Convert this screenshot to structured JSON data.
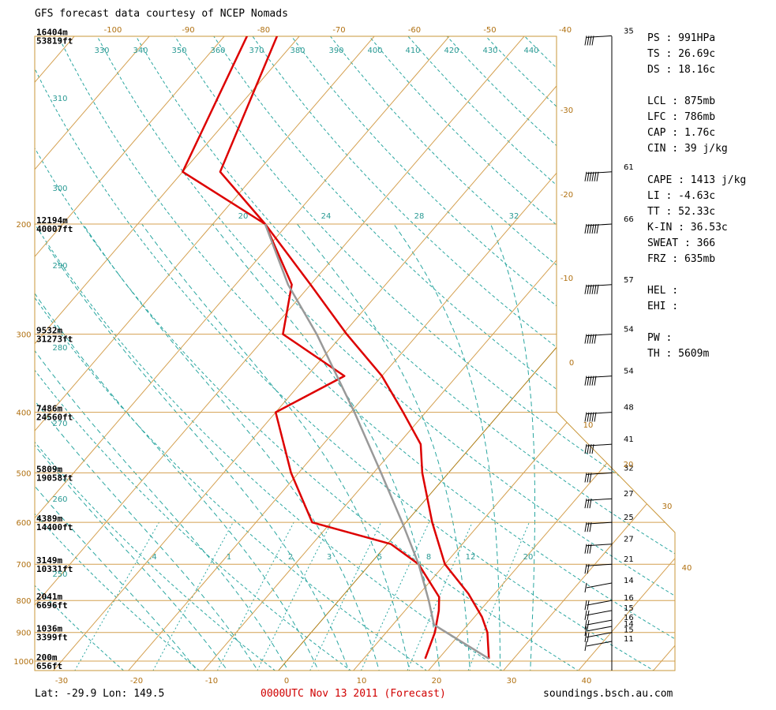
{
  "header": {
    "title": "GFS forecast data courtesy of NCEP Nomads"
  },
  "footer": {
    "location": "Lat: -29.9  Lon: 149.5",
    "run": "0000UTC Nov 13 2011 (Forecast)",
    "source": "soundings.bsch.au.com"
  },
  "indices": [
    {
      "label": "PS",
      "value": "991HPa"
    },
    {
      "label": "TS",
      "value": "26.69c"
    },
    {
      "label": "DS",
      "value": "18.16c"
    },
    {
      "label": "",
      "value": ""
    },
    {
      "label": "LCL",
      "value": "875mb"
    },
    {
      "label": "LFC",
      "value": "786mb"
    },
    {
      "label": "CAP",
      "value": "1.76c"
    },
    {
      "label": "CIN",
      "value": "39 j/kg"
    },
    {
      "label": "",
      "value": ""
    },
    {
      "label": "CAPE",
      "value": "1413 j/kg"
    },
    {
      "label": "LI",
      "value": "-4.63c"
    },
    {
      "label": "TT",
      "value": "52.33c"
    },
    {
      "label": "K-IN",
      "value": "36.53c"
    },
    {
      "label": "SWEAT",
      "value": "366"
    },
    {
      "label": "FRZ",
      "value": "635mb"
    },
    {
      "label": "",
      "value": ""
    },
    {
      "label": "HEL",
      "value": ""
    },
    {
      "label": "EHI",
      "value": ""
    },
    {
      "label": "",
      "value": ""
    },
    {
      "label": "PW",
      "value": ""
    },
    {
      "label": "TH",
      "value": "5609m"
    }
  ],
  "chart_data": {
    "type": "line",
    "chart_kind": "skew-t log-p",
    "x_bottom_ticks": [
      "-30",
      "-20",
      "-10",
      "0",
      "10",
      "20",
      "30",
      "40"
    ],
    "x_top_ticks": [
      "-100",
      "-90",
      "-80",
      "-70",
      "-60",
      "-50",
      "-40"
    ],
    "right_temp_labels": [
      "-30",
      "-20",
      "-10",
      "0",
      "10",
      "20",
      "30",
      "40"
    ],
    "pressure_ticks": [
      "200",
      "300",
      "400",
      "500",
      "600",
      "700",
      "800",
      "900",
      "1000"
    ],
    "height_labels": [
      {
        "p": 100,
        "m": "16404m",
        "ft": "53819ft"
      },
      {
        "p": 200,
        "m": "12194m",
        "ft": "40007ft"
      },
      {
        "p": 300,
        "m": "9532m",
        "ft": "31273ft"
      },
      {
        "p": 400,
        "m": "7486m",
        "ft": "24560ft"
      },
      {
        "p": 500,
        "m": "5809m",
        "ft": "19058ft"
      },
      {
        "p": 600,
        "m": "4389m",
        "ft": "14400ft"
      },
      {
        "p": 700,
        "m": "3149m",
        "ft": "10331ft"
      },
      {
        "p": 800,
        "m": "2041m",
        "ft": "6696ft"
      },
      {
        "p": 900,
        "m": "1036m",
        "ft": "3399ft"
      },
      {
        "p": 1000,
        "m": "200m",
        "ft": "656ft"
      }
    ],
    "theta_labels": [
      "330",
      "340",
      "350",
      "360",
      "370",
      "380",
      "390",
      "400",
      "410",
      "420",
      "430",
      "440",
      "310",
      "300",
      "290",
      "280",
      "270",
      "260",
      "250"
    ],
    "thetae_labels": [
      "20",
      "24",
      "28",
      "32"
    ],
    "mixing_ratio_labels": [
      ".4",
      "1",
      "2",
      "3",
      "5",
      "8",
      "12",
      "20"
    ],
    "series": [
      {
        "name": "temperature",
        "color": "#dd0000",
        "points": [
          {
            "p": 100,
            "t": -73.0
          },
          {
            "p": 165,
            "t": -65.0
          },
          {
            "p": 200,
            "t": -53.0
          },
          {
            "p": 250,
            "t": -40.0
          },
          {
            "p": 300,
            "t": -29.5
          },
          {
            "p": 350,
            "t": -20.0
          },
          {
            "p": 400,
            "t": -13.0
          },
          {
            "p": 450,
            "t": -7.0
          },
          {
            "p": 500,
            "t": -3.5
          },
          {
            "p": 600,
            "t": 3.5
          },
          {
            "p": 700,
            "t": 10.0
          },
          {
            "p": 780,
            "t": 16.5
          },
          {
            "p": 850,
            "t": 21.0
          },
          {
            "p": 900,
            "t": 23.5
          },
          {
            "p": 991,
            "t": 26.7
          }
        ]
      },
      {
        "name": "dewpoint",
        "color": "#dd0000",
        "points": [
          {
            "p": 100,
            "t": -77.0
          },
          {
            "p": 165,
            "t": -70.0
          },
          {
            "p": 200,
            "t": -53.0
          },
          {
            "p": 250,
            "t": -42.5
          },
          {
            "p": 300,
            "t": -38.0
          },
          {
            "p": 350,
            "t": -25.0
          },
          {
            "p": 400,
            "t": -30.0
          },
          {
            "p": 500,
            "t": -21.0
          },
          {
            "p": 600,
            "t": -12.5
          },
          {
            "p": 650,
            "t": 0.5
          },
          {
            "p": 700,
            "t": 6.5
          },
          {
            "p": 790,
            "t": 13.0
          },
          {
            "p": 830,
            "t": 14.5
          },
          {
            "p": 900,
            "t": 16.5
          },
          {
            "p": 991,
            "t": 18.2
          }
        ]
      },
      {
        "name": "parcel",
        "color": "#999999",
        "points": [
          {
            "p": 991,
            "t": 26.7
          },
          {
            "p": 875,
            "t": 15.5
          },
          {
            "p": 800,
            "t": 12.0
          },
          {
            "p": 700,
            "t": 6.5
          },
          {
            "p": 600,
            "t": -0.5
          },
          {
            "p": 500,
            "t": -9.0
          },
          {
            "p": 400,
            "t": -19.5
          },
          {
            "p": 300,
            "t": -33.5
          },
          {
            "p": 250,
            "t": -43.0
          },
          {
            "p": 200,
            "t": -53.0
          }
        ]
      }
    ],
    "wind": [
      {
        "p": 100,
        "speed": "35"
      },
      {
        "p": 165,
        "speed": "61"
      },
      {
        "p": 200,
        "speed": "66"
      },
      {
        "p": 250,
        "speed": "57"
      },
      {
        "p": 300,
        "speed": "54"
      },
      {
        "p": 350,
        "speed": "54"
      },
      {
        "p": 400,
        "speed": "48"
      },
      {
        "p": 450,
        "speed": "41"
      },
      {
        "p": 500,
        "speed": "32"
      },
      {
        "p": 550,
        "speed": "27"
      },
      {
        "p": 600,
        "speed": "25"
      },
      {
        "p": 650,
        "speed": "27"
      },
      {
        "p": 700,
        "speed": "21"
      },
      {
        "p": 750,
        "speed": "14"
      },
      {
        "p": 800,
        "speed": "16"
      },
      {
        "p": 830,
        "speed": "15"
      },
      {
        "p": 860,
        "speed": "16"
      },
      {
        "p": 880,
        "speed": "14"
      },
      {
        "p": 900,
        "speed": "15"
      },
      {
        "p": 930,
        "speed": "11"
      }
    ]
  }
}
